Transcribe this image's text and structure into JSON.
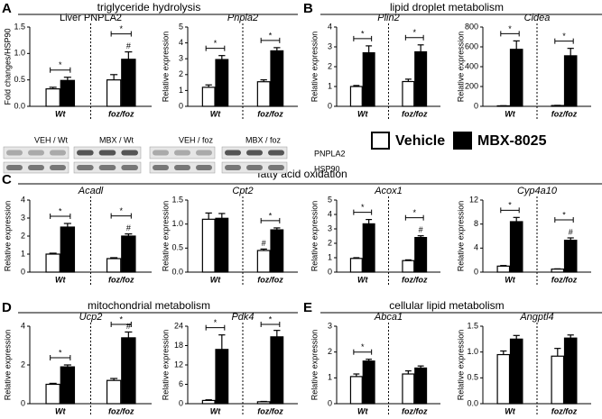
{
  "sections": [
    {
      "letter": "A",
      "title": "triglyceride hydrolysis"
    },
    {
      "letter": "B",
      "title": "lipid droplet metabolism"
    },
    {
      "letter": "C",
      "title": "fatty acid oxidation"
    },
    {
      "letter": "D",
      "title": "mitochondrial metabolism"
    },
    {
      "letter": "E",
      "title": "cellular lipid metabolism"
    }
  ],
  "blot": {
    "lanes": [
      "VEH / Wt",
      "MBX / Wt",
      "VEH / foz",
      "MBX / foz"
    ],
    "proteins": [
      "PNPLA2",
      "HSP90"
    ]
  },
  "legend": [
    {
      "name": "Vehicle",
      "color": "#ffffff"
    },
    {
      "name": "MBX-8025",
      "color": "#000000"
    }
  ],
  "chart_data": [
    {
      "type": "bar",
      "title": "Liver PNPLA2",
      "ylabel": "Fold changes/HSP90",
      "categories": [
        "Wt",
        "foz/foz"
      ],
      "series": [
        {
          "color": "#ffffff",
          "values": [
            0.33,
            0.5
          ],
          "errors": [
            0.03,
            0.1
          ],
          "marks": [
            null,
            null
          ]
        },
        {
          "color": "#000000",
          "values": [
            0.49,
            0.89
          ],
          "errors": [
            0.06,
            0.14
          ],
          "marks": [
            null,
            "#"
          ]
        }
      ],
      "significance": [
        "*",
        "*"
      ],
      "ylim": [
        0,
        1.5
      ],
      "yticks": [
        {
          "value": 0,
          "label": "0.0"
        },
        0.5,
        {
          "value": 1,
          "label": "1.0"
        },
        1.5
      ]
    },
    {
      "type": "bar",
      "title": "Pnpla2",
      "ylabel": "Relative expression",
      "categories": [
        "Wt",
        "foz/foz"
      ],
      "series": [
        {
          "color": "#ffffff",
          "values": [
            1.2,
            1.55
          ],
          "errors": [
            0.15,
            0.12
          ],
          "marks": [
            null,
            null
          ]
        },
        {
          "color": "#000000",
          "values": [
            2.95,
            3.5
          ],
          "errors": [
            0.25,
            0.2
          ],
          "marks": [
            null,
            null
          ]
        }
      ],
      "significance": [
        "*",
        "*"
      ],
      "ylim": [
        0,
        5
      ],
      "yticks": [
        0,
        1,
        2,
        3,
        4,
        5
      ]
    },
    {
      "type": "bar",
      "title": "Plin2",
      "ylabel": "Relative expression",
      "categories": [
        "Wt",
        "foz/foz"
      ],
      "series": [
        {
          "color": "#ffffff",
          "values": [
            1.0,
            1.25
          ],
          "errors": [
            0.05,
            0.12
          ],
          "marks": [
            null,
            null
          ]
        },
        {
          "color": "#000000",
          "values": [
            2.7,
            2.75
          ],
          "errors": [
            0.35,
            0.35
          ],
          "marks": [
            null,
            null
          ]
        }
      ],
      "significance": [
        "*",
        "*"
      ],
      "ylim": [
        0,
        4
      ],
      "yticks": [
        0,
        1,
        2,
        3,
        4
      ]
    },
    {
      "type": "bar",
      "title": "Cidea",
      "ylabel": "Relative expression",
      "categories": [
        "Wt",
        "foz/foz"
      ],
      "series": [
        {
          "color": "#ffffff",
          "values": [
            5,
            8
          ],
          "errors": [
            1,
            2
          ],
          "marks": [
            null,
            null
          ]
        },
        {
          "color": "#000000",
          "values": [
            575,
            510
          ],
          "errors": [
            85,
            75
          ],
          "marks": [
            null,
            null
          ]
        }
      ],
      "significance": [
        "*",
        "*"
      ],
      "ylim": [
        0,
        800
      ],
      "yticks": [
        0,
        200,
        400,
        600,
        800
      ]
    },
    {
      "type": "bar",
      "title": "Acadl",
      "ylabel": "Relative expression",
      "categories": [
        "Wt",
        "foz/foz"
      ],
      "series": [
        {
          "color": "#ffffff",
          "values": [
            1.0,
            0.75
          ],
          "errors": [
            0.05,
            0.05
          ],
          "marks": [
            null,
            null
          ]
        },
        {
          "color": "#000000",
          "values": [
            2.5,
            2.0
          ],
          "errors": [
            0.2,
            0.12
          ],
          "marks": [
            null,
            "#"
          ]
        }
      ],
      "significance": [
        "*",
        "*"
      ],
      "ylim": [
        0,
        4
      ],
      "yticks": [
        0,
        1,
        2,
        3,
        4
      ]
    },
    {
      "type": "bar",
      "title": "Cpt2",
      "ylabel": "Relative expression",
      "categories": [
        "Wt",
        "foz/foz"
      ],
      "series": [
        {
          "color": "#ffffff",
          "values": [
            1.1,
            0.45
          ],
          "errors": [
            0.13,
            0.03
          ],
          "marks": [
            null,
            "#"
          ]
        },
        {
          "color": "#000000",
          "values": [
            1.12,
            0.88
          ],
          "errors": [
            0.1,
            0.04
          ],
          "marks": [
            null,
            null
          ]
        }
      ],
      "significance": [
        null,
        "*"
      ],
      "ylim": [
        0,
        1.5
      ],
      "yticks": [
        {
          "value": 0,
          "label": "0.0"
        },
        0.5,
        {
          "value": 1,
          "label": "1.0"
        },
        1.5
      ]
    },
    {
      "type": "bar",
      "title": "Acox1",
      "ylabel": "Relative expression",
      "categories": [
        "Wt",
        "foz/foz"
      ],
      "series": [
        {
          "color": "#ffffff",
          "values": [
            0.95,
            0.8
          ],
          "errors": [
            0.05,
            0.05
          ],
          "marks": [
            null,
            null
          ]
        },
        {
          "color": "#000000",
          "values": [
            3.35,
            2.4
          ],
          "errors": [
            0.3,
            0.12
          ],
          "marks": [
            null,
            "#"
          ]
        }
      ],
      "significance": [
        "*",
        "*"
      ],
      "ylim": [
        0,
        5
      ],
      "yticks": [
        0,
        1,
        2,
        3,
        4,
        5
      ]
    },
    {
      "type": "bar",
      "title": "Cyp4a10",
      "ylabel": "Relative expression",
      "categories": [
        "Wt",
        "foz/foz"
      ],
      "series": [
        {
          "color": "#ffffff",
          "values": [
            1.0,
            0.5
          ],
          "errors": [
            0.1,
            0.05
          ],
          "marks": [
            null,
            null
          ]
        },
        {
          "color": "#000000",
          "values": [
            8.4,
            5.3
          ],
          "errors": [
            0.7,
            0.4
          ],
          "marks": [
            null,
            "#"
          ]
        }
      ],
      "significance": [
        "*",
        "*"
      ],
      "ylim": [
        0,
        12
      ],
      "yticks": [
        0,
        4,
        8,
        12
      ]
    },
    {
      "type": "bar",
      "title": "Ucp2",
      "ylabel": "Relative expression",
      "categories": [
        "Wt",
        "foz/foz"
      ],
      "series": [
        {
          "color": "#ffffff",
          "values": [
            1.0,
            1.2
          ],
          "errors": [
            0.05,
            0.1
          ],
          "marks": [
            null,
            null
          ]
        },
        {
          "color": "#000000",
          "values": [
            1.9,
            3.4
          ],
          "errors": [
            0.1,
            0.3
          ],
          "marks": [
            null,
            "#"
          ]
        }
      ],
      "significance": [
        "*",
        "*"
      ],
      "ylim": [
        0,
        4
      ],
      "yticks": [
        0,
        2,
        4
      ]
    },
    {
      "type": "bar",
      "title": "Pdk4",
      "ylabel": "Relative expression",
      "categories": [
        "Wt",
        "foz/foz"
      ],
      "series": [
        {
          "color": "#ffffff",
          "values": [
            1.0,
            0.6
          ],
          "errors": [
            0.2,
            0.1
          ],
          "marks": [
            null,
            null
          ]
        },
        {
          "color": "#000000",
          "values": [
            16.8,
            20.7
          ],
          "errors": [
            4.5,
            2
          ],
          "marks": [
            null,
            null
          ]
        }
      ],
      "significance": [
        "*",
        "*"
      ],
      "ylim": [
        0,
        24
      ],
      "yticks": [
        0,
        6,
        12,
        18,
        24
      ]
    },
    {
      "type": "bar",
      "title": "Abca1",
      "ylabel": "Relative expression",
      "categories": [
        "Wt",
        "foz/foz"
      ],
      "series": [
        {
          "color": "#ffffff",
          "values": [
            1.05,
            1.15
          ],
          "errors": [
            0.1,
            0.12
          ],
          "marks": [
            null,
            null
          ]
        },
        {
          "color": "#000000",
          "values": [
            1.65,
            1.38
          ],
          "errors": [
            0.07,
            0.08
          ],
          "marks": [
            null,
            null
          ]
        }
      ],
      "significance": [
        "*",
        null
      ],
      "ylim": [
        0,
        3
      ],
      "yticks": [
        0,
        1,
        2,
        3
      ]
    },
    {
      "type": "bar",
      "title": "Angptl4",
      "ylabel": "Relative expression",
      "categories": [
        "Wt",
        "foz/foz"
      ],
      "series": [
        {
          "color": "#ffffff",
          "values": [
            0.95,
            0.92
          ],
          "errors": [
            0.07,
            0.15
          ],
          "marks": [
            null,
            null
          ]
        },
        {
          "color": "#000000",
          "values": [
            1.25,
            1.27
          ],
          "errors": [
            0.07,
            0.06
          ],
          "marks": [
            null,
            null
          ]
        }
      ],
      "significance": [
        null,
        null
      ],
      "ylim": [
        0,
        1.5
      ],
      "yticks": [
        {
          "value": 0,
          "label": "0.0"
        },
        0.5,
        {
          "value": 1,
          "label": "1.0"
        },
        1.5
      ]
    }
  ]
}
